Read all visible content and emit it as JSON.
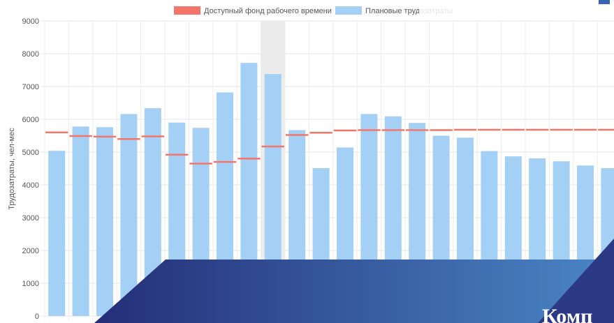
{
  "chart_data": {
    "type": "bar",
    "ylabel": "Трудозатраты, чел-мес",
    "ylim": [
      0,
      9000
    ],
    "yticks": [
      0,
      1000,
      2000,
      3000,
      4000,
      5000,
      6000,
      7000,
      8000,
      9000
    ],
    "grid": true,
    "legend_position": "top",
    "highlighted_category_index": 9,
    "series": [
      {
        "name": "Доступный фонд рабочего времени",
        "mark": "line-segment",
        "color": "#f4756a",
        "values": [
          5600,
          5490,
          5470,
          5400,
          5480,
          4920,
          4650,
          4700,
          4800,
          5170,
          5520,
          5590,
          5660,
          5670,
          5670,
          5670,
          5670,
          5680,
          5680,
          5680,
          5680,
          5680,
          5680,
          5680,
          5680
        ]
      },
      {
        "name": "Плановые трудозатраты",
        "mark": "bar",
        "color": "#a4d0f5",
        "values": [
          5040,
          5780,
          5760,
          6160,
          6340,
          5900,
          5740,
          6820,
          7720,
          7380,
          5670,
          4510,
          5140,
          6160,
          6090,
          5890,
          5500,
          5440,
          5030,
          4870,
          4810,
          4720,
          4590,
          4510,
          4510
        ]
      }
    ]
  },
  "legend": {
    "items": [
      {
        "label": "Доступный фонд рабочего времени",
        "color": "#f4756a"
      },
      {
        "label": "Плановые трудозатраты",
        "color": "#a4d0f5"
      }
    ]
  },
  "overlay": {
    "text": "Комп"
  }
}
